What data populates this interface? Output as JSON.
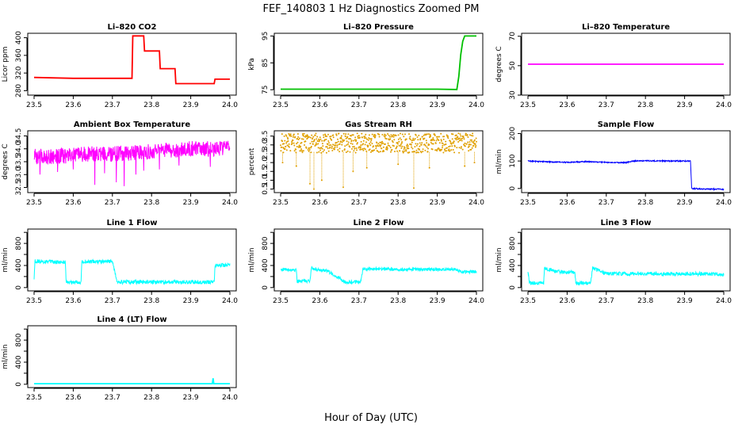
{
  "figure": {
    "title": "FEF_140803  1 Hz Diagnostics Zoomed PM",
    "xlabel": "Hour of Day (UTC)"
  },
  "chart_data": [
    {
      "type": "line",
      "title": "Li–820 CO2",
      "ylabel": "Licor ppm",
      "color": "#ff0000",
      "xlim": [
        23.5,
        24.0
      ],
      "xticks": [
        23.5,
        23.6,
        23.7,
        23.8,
        23.9,
        24.0
      ],
      "xtick_labels": [
        "23.5",
        "23.6",
        "23.7",
        "23.8",
        "23.9",
        "24.0"
      ],
      "ylim": [
        270,
        410
      ],
      "yticks": [
        280,
        320,
        360,
        400
      ],
      "ytick_labels": [
        "280",
        "320",
        "360",
        "400"
      ],
      "series": [
        {
          "name": "CO2",
          "x": [
            23.5,
            23.6,
            23.7,
            23.75,
            23.752,
            23.76,
            23.78,
            23.782,
            23.8,
            23.82,
            23.822,
            23.84,
            23.86,
            23.862,
            23.88,
            23.9,
            23.92,
            23.94,
            23.96,
            23.962,
            23.98,
            24.0
          ],
          "y": [
            310,
            308,
            308,
            308,
            404,
            404,
            404,
            370,
            370,
            370,
            330,
            330,
            330,
            296,
            296,
            296,
            296,
            296,
            296,
            306,
            306,
            306
          ]
        }
      ]
    },
    {
      "type": "line",
      "title": "Li–820 Pressure",
      "ylabel": "kPa",
      "color": "#00c000",
      "xlim": [
        23.5,
        24.0
      ],
      "xticks": [
        23.5,
        23.6,
        23.7,
        23.8,
        23.9,
        24.0
      ],
      "xtick_labels": [
        "23.5",
        "23.6",
        "23.7",
        "23.8",
        "23.9",
        "24.0"
      ],
      "ylim": [
        73,
        96
      ],
      "yticks": [
        75,
        85,
        95
      ],
      "ytick_labels": [
        "75",
        "85",
        "95"
      ],
      "series": [
        {
          "name": "Pressure",
          "x": [
            23.5,
            23.6,
            23.7,
            23.8,
            23.9,
            23.95,
            23.955,
            23.96,
            23.965,
            23.97,
            24.0
          ],
          "y": [
            75.2,
            75.2,
            75.2,
            75.2,
            75.2,
            75.1,
            80,
            88,
            93,
            95,
            95
          ]
        }
      ]
    },
    {
      "type": "line",
      "title": "Li–820 Temperature",
      "ylabel": "degrees C",
      "color": "#ff00ff",
      "xlim": [
        23.5,
        24.0
      ],
      "xticks": [
        23.5,
        23.6,
        23.7,
        23.8,
        23.9,
        24.0
      ],
      "xtick_labels": [
        "23.5",
        "23.6",
        "23.7",
        "23.8",
        "23.9",
        "24.0"
      ],
      "ylim": [
        30,
        72
      ],
      "yticks": [
        30,
        50,
        70
      ],
      "ytick_labels": [
        "30",
        "50",
        "70"
      ],
      "series": [
        {
          "name": "Temperature",
          "x": [
            23.5,
            24.0
          ],
          "y": [
            51.0,
            51.0
          ]
        }
      ]
    },
    {
      "type": "line",
      "title": "Ambient Box Temperature",
      "ylabel": "degrees C",
      "color": "#ff00ff",
      "xlim": [
        23.5,
        24.0
      ],
      "xticks": [
        23.5,
        23.6,
        23.7,
        23.8,
        23.9,
        24.0
      ],
      "xtick_labels": [
        "23.5",
        "23.6",
        "23.7",
        "23.8",
        "23.9",
        "24.0"
      ],
      "ylim": [
        32.3,
        34.7
      ],
      "yticks": [
        32.5,
        33.0,
        33.5,
        34.0,
        34.5
      ],
      "ytick_labels": [
        "32.5",
        "33.0",
        "33.5",
        "34.0",
        "34.5"
      ],
      "series": [
        {
          "name": "Ambient",
          "x": [
            23.5,
            23.55,
            23.6,
            23.65,
            23.7,
            23.75,
            23.8,
            23.85,
            23.9,
            23.95,
            24.0
          ],
          "y": [
            33.7,
            33.7,
            33.75,
            33.8,
            33.8,
            33.85,
            33.9,
            33.95,
            34.0,
            34.0,
            34.05
          ],
          "noise_amp": 0.3,
          "spikes": [
            [
              23.515,
              33.0
            ],
            [
              23.56,
              33.1
            ],
            [
              23.6,
              33.2
            ],
            [
              23.655,
              32.6
            ],
            [
              23.68,
              33.05
            ],
            [
              23.71,
              32.7
            ],
            [
              23.73,
              32.55
            ],
            [
              23.76,
              33.0
            ],
            [
              23.78,
              33.15
            ],
            [
              23.82,
              33.2
            ],
            [
              23.87,
              33.35
            ],
            [
              23.95,
              33.3
            ]
          ]
        }
      ]
    },
    {
      "type": "scatter",
      "title": "Gas Stream RH",
      "ylabel": "percent",
      "color": "#e0a000",
      "xlim": [
        23.5,
        24.0
      ],
      "xticks": [
        23.5,
        23.6,
        23.7,
        23.8,
        23.9,
        24.0
      ],
      "xtick_labels": [
        "23.5",
        "23.6",
        "23.7",
        "23.8",
        "23.9",
        "24.0"
      ],
      "ylim": [
        0.3,
        3.8
      ],
      "yticks": [
        0.5,
        1.0,
        1.5,
        2.0,
        2.5,
        3.0,
        3.5
      ],
      "ytick_labels": [
        "0.5",
        "1.0",
        "1.5",
        "2.0",
        "2.5",
        "3.0",
        "3.5"
      ],
      "series": [
        {
          "name": "RH",
          "x": [
            23.5,
            24.0
          ],
          "y": [
            3.1,
            3.1
          ],
          "noise_amp": 0.55,
          "spikes": [
            [
              23.505,
              2.0
            ],
            [
              23.54,
              1.8
            ],
            [
              23.575,
              0.8
            ],
            [
              23.585,
              0.5
            ],
            [
              23.605,
              1.0
            ],
            [
              23.66,
              0.6
            ],
            [
              23.685,
              1.5
            ],
            [
              23.72,
              1.7
            ],
            [
              23.8,
              1.9
            ],
            [
              23.84,
              0.55
            ],
            [
              23.88,
              1.7
            ],
            [
              23.97,
              1.8
            ],
            [
              23.995,
              2.0
            ]
          ]
        }
      ]
    },
    {
      "type": "line",
      "title": "Sample Flow",
      "ylabel": "ml/min",
      "color": "#0000ff",
      "xlim": [
        23.5,
        24.0
      ],
      "xticks": [
        23.5,
        23.6,
        23.7,
        23.8,
        23.9,
        24.0
      ],
      "xtick_labels": [
        "23.5",
        "23.6",
        "23.7",
        "23.8",
        "23.9",
        "24.0"
      ],
      "ylim": [
        -15,
        210
      ],
      "yticks": [
        0,
        100,
        200
      ],
      "ytick_labels": [
        "0",
        "100",
        "200"
      ],
      "series": [
        {
          "name": "Flow",
          "x": [
            23.5,
            23.55,
            23.6,
            23.65,
            23.7,
            23.75,
            23.77,
            23.8,
            23.85,
            23.9,
            23.915,
            23.918,
            23.95,
            24.0
          ],
          "y": [
            100,
            97,
            95,
            98,
            95,
            94,
            100,
            101,
            100,
            100,
            100,
            0,
            -2,
            -3
          ],
          "noise_amp": 2
        }
      ]
    },
    {
      "type": "line",
      "title": "Line 1 Flow",
      "ylabel": "ml/min",
      "color": "#00ffff",
      "xlim": [
        23.5,
        24.0
      ],
      "xticks": [
        23.5,
        23.6,
        23.7,
        23.8,
        23.9,
        24.0
      ],
      "xtick_labels": [
        "23.5",
        "23.6",
        "23.7",
        "23.8",
        "23.9",
        "24.0"
      ],
      "ylim": [
        -60,
        1060
      ],
      "yticks": [
        0,
        200,
        400,
        600,
        800,
        1000
      ],
      "ytick_labels": [
        "0",
        "400",
        "800"
      ],
      "series": [
        {
          "name": "Line 1",
          "x": [
            23.5,
            23.502,
            23.55,
            23.58,
            23.582,
            23.62,
            23.622,
            23.7,
            23.712,
            23.8,
            23.9,
            23.96,
            23.962,
            24.0
          ],
          "y": [
            150,
            480,
            460,
            460,
            100,
            100,
            470,
            470,
            100,
            100,
            100,
            100,
            400,
            410
          ],
          "noise_amp": 35
        }
      ]
    },
    {
      "type": "line",
      "title": "Line 2 Flow",
      "ylabel": "ml/min",
      "color": "#00ffff",
      "xlim": [
        23.5,
        24.0
      ],
      "xticks": [
        23.5,
        23.6,
        23.7,
        23.8,
        23.9,
        24.0
      ],
      "xtick_labels": [
        "23.5",
        "23.6",
        "23.7",
        "23.8",
        "23.9",
        "24.0"
      ],
      "ylim": [
        -60,
        1060
      ],
      "yticks": [
        0,
        200,
        400,
        600,
        800,
        1000
      ],
      "ytick_labels": [
        "0",
        "400",
        "800"
      ],
      "series": [
        {
          "name": "Line 2",
          "x": [
            23.5,
            23.54,
            23.542,
            23.575,
            23.578,
            23.62,
            23.665,
            23.668,
            23.705,
            23.71,
            23.8,
            23.9,
            23.95,
            23.96,
            24.0
          ],
          "y": [
            330,
            320,
            120,
            120,
            350,
            300,
            100,
            100,
            100,
            340,
            330,
            330,
            330,
            280,
            290
          ],
          "noise_amp": 30
        }
      ]
    },
    {
      "type": "line",
      "title": "Line 3 Flow",
      "ylabel": "ml/min",
      "color": "#00ffff",
      "xlim": [
        23.5,
        24.0
      ],
      "xticks": [
        23.5,
        23.6,
        23.7,
        23.8,
        23.9,
        24.0
      ],
      "xtick_labels": [
        "23.5",
        "23.6",
        "23.7",
        "23.8",
        "23.9",
        "24.0"
      ],
      "ylim": [
        -60,
        1060
      ],
      "yticks": [
        0,
        200,
        400,
        600,
        800,
        1000
      ],
      "ytick_labels": [
        "0",
        "400",
        "800"
      ],
      "series": [
        {
          "name": "Line 3",
          "x": [
            23.5,
            23.504,
            23.54,
            23.542,
            23.58,
            23.62,
            23.622,
            23.66,
            23.665,
            23.7,
            23.8,
            23.9,
            23.95,
            24.0
          ],
          "y": [
            280,
            80,
            80,
            350,
            280,
            280,
            80,
            80,
            350,
            250,
            250,
            250,
            250,
            240
          ],
          "noise_amp": 35
        }
      ]
    },
    {
      "type": "line",
      "title": "Line 4 (LT) Flow",
      "ylabel": "ml/min",
      "color": "#00ffff",
      "xlim": [
        23.5,
        24.0
      ],
      "xticks": [
        23.5,
        23.6,
        23.7,
        23.8,
        23.9,
        24.0
      ],
      "xtick_labels": [
        "23.5",
        "23.6",
        "23.7",
        "23.8",
        "23.9",
        "24.0"
      ],
      "ylim": [
        -60,
        1060
      ],
      "yticks": [
        0,
        200,
        400,
        600,
        800,
        1000
      ],
      "ytick_labels": [
        "0",
        "400",
        "800"
      ],
      "series": [
        {
          "name": "Line 4",
          "x": [
            23.5,
            23.6,
            23.7,
            23.8,
            23.9,
            23.955,
            23.957,
            23.959,
            24.0
          ],
          "y": [
            10,
            10,
            10,
            10,
            10,
            10,
            110,
            10,
            10
          ]
        }
      ]
    }
  ]
}
